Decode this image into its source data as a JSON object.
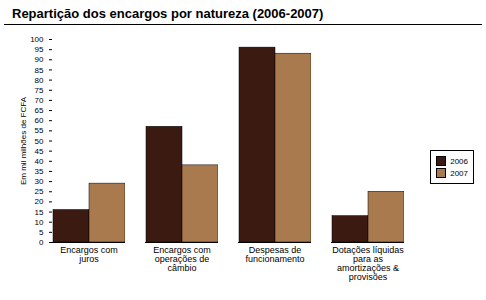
{
  "chart_data": {
    "type": "bar",
    "title": "Repartição dos encargos por natureza (2006-2007)",
    "y_label": "Em mil milhões de FCFA",
    "categories": [
      "Encargos com juros",
      "Encargos com operações de câmbio",
      "Despesas de funcionamento",
      "Dotações líquidas para as amortizações & provisões"
    ],
    "series": [
      {
        "name": "2006",
        "color": "#3b1a12",
        "values": [
          16,
          57,
          96,
          13
        ]
      },
      {
        "name": "2007",
        "color": "#a97a4e",
        "values": [
          29,
          38,
          93,
          25
        ]
      }
    ],
    "ylim": [
      0,
      100
    ],
    "yticks": [
      0,
      5,
      10,
      15,
      20,
      25,
      30,
      35,
      40,
      45,
      50,
      55,
      60,
      65,
      70,
      75,
      80,
      85,
      90,
      95,
      100
    ],
    "grid": false,
    "legend": "right"
  }
}
